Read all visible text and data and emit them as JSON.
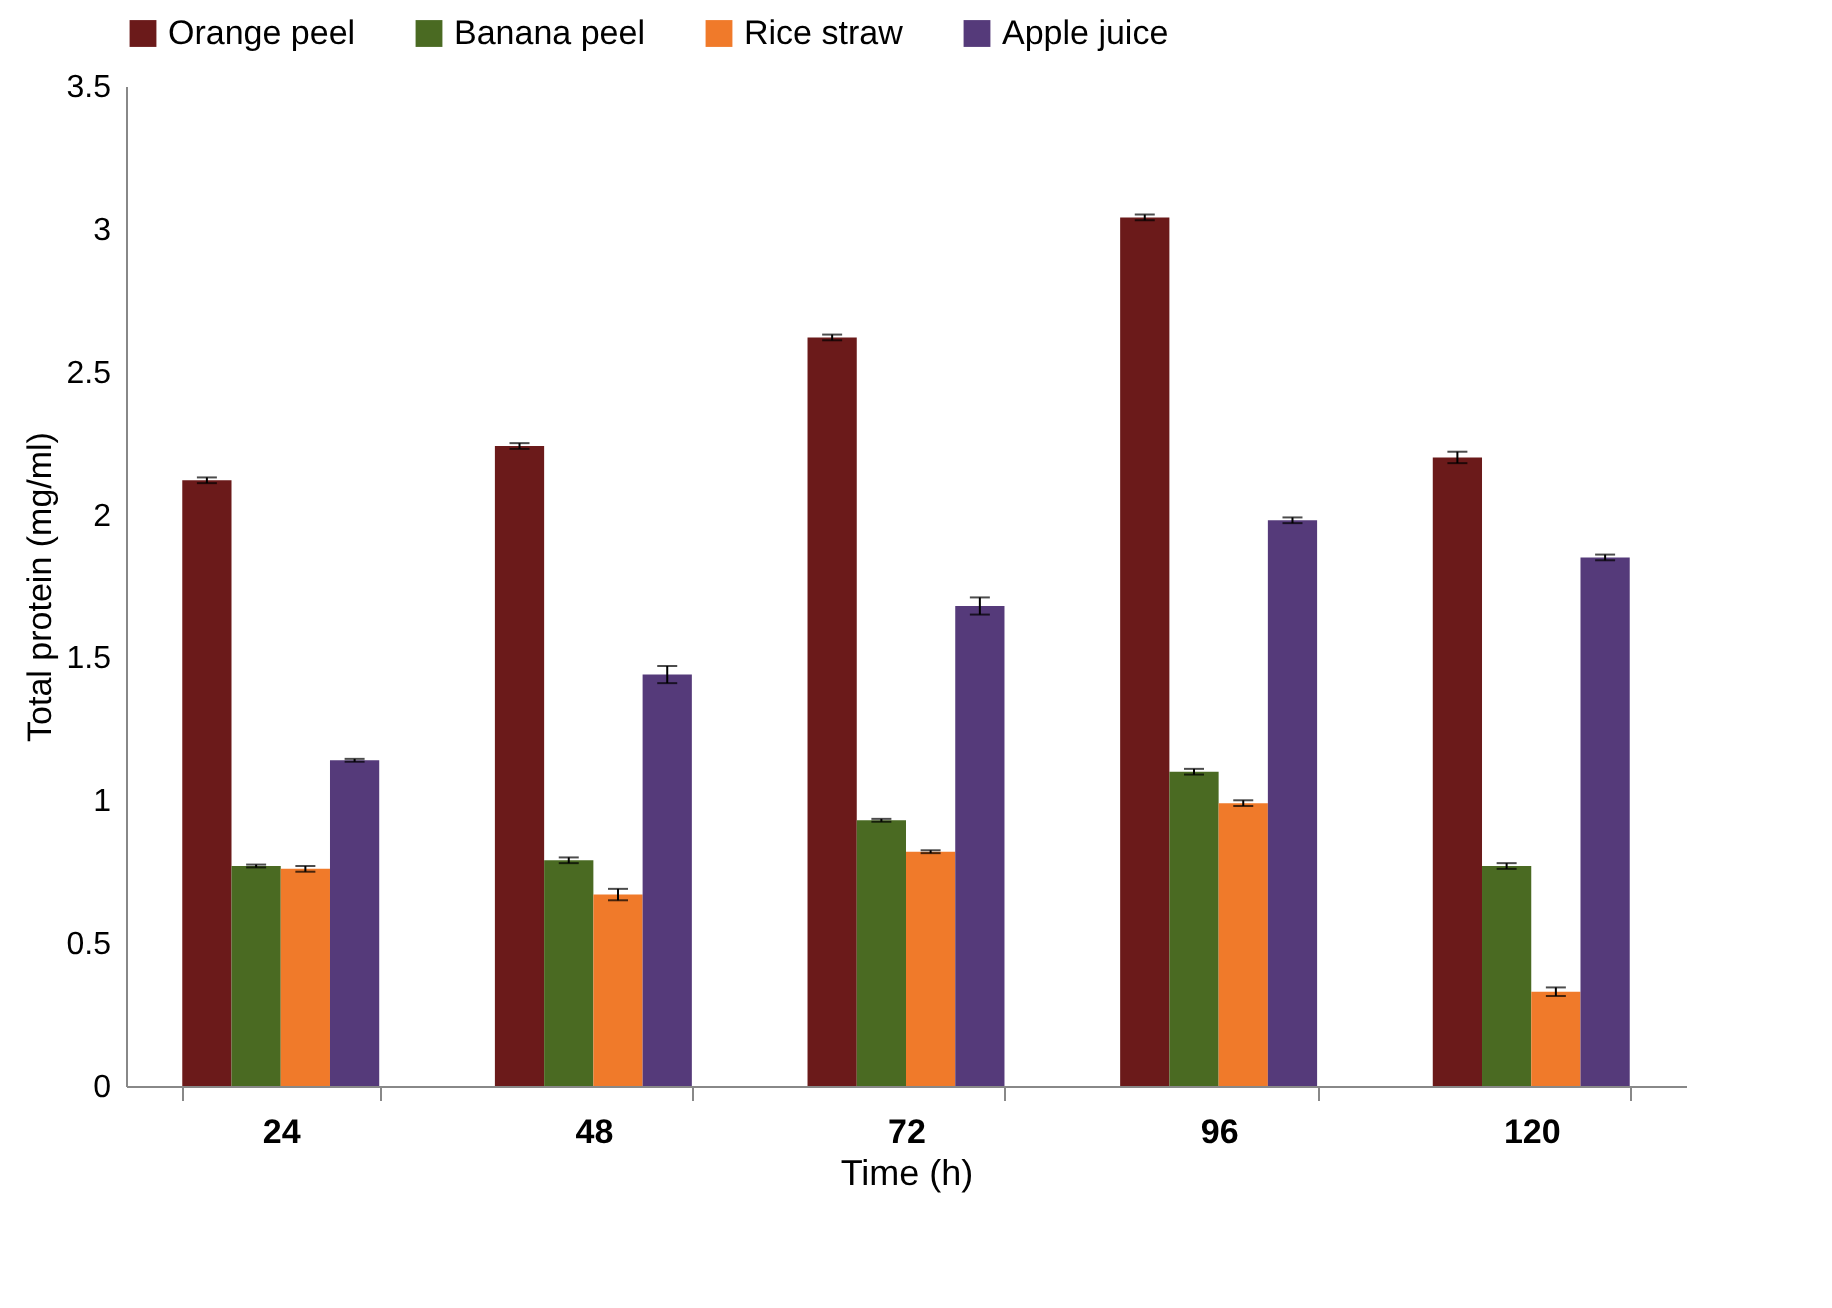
{
  "chart_data": {
    "type": "bar",
    "xlabel": "Time (h)",
    "ylabel": "Total protein (mg/ml)",
    "categories": [
      "24",
      "48",
      "72",
      "96",
      "120"
    ],
    "series": [
      {
        "name": "Orange peel",
        "color": "#6b1a1a",
        "values": [
          2.12,
          2.24,
          2.62,
          3.04,
          2.2
        ],
        "errors": [
          0.01,
          0.01,
          0.01,
          0.01,
          0.02
        ]
      },
      {
        "name": "Banana peel",
        "color": "#4a6a22",
        "values": [
          0.77,
          0.79,
          0.93,
          1.1,
          0.77
        ],
        "errors": [
          0.005,
          0.01,
          0.005,
          0.01,
          0.01
        ]
      },
      {
        "name": "Rice straw",
        "color": "#f07a2a",
        "values": [
          0.76,
          0.67,
          0.82,
          0.99,
          0.33
        ],
        "errors": [
          0.01,
          0.02,
          0.005,
          0.01,
          0.015
        ]
      },
      {
        "name": "Apple juice",
        "color": "#553a7a",
        "values": [
          1.14,
          1.44,
          1.68,
          1.98,
          1.85
        ],
        "errors": [
          0.005,
          0.03,
          0.03,
          0.01,
          0.01
        ]
      }
    ],
    "ylim": [
      0,
      3.5
    ],
    "yticks": [
      0,
      0.5,
      1,
      1.5,
      2,
      2.5,
      3,
      3.5
    ],
    "legend": "top",
    "grid": false
  }
}
